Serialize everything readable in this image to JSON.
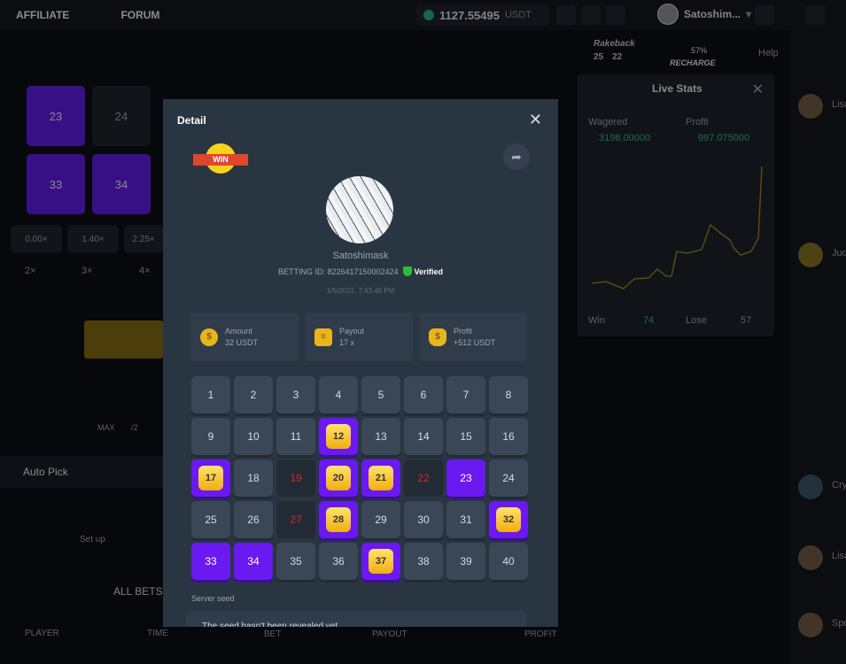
{
  "topbar": {
    "nav": [
      "AFFILIATE",
      "FORUM"
    ],
    "balance": "1127.55495",
    "currency": "USDT",
    "username": "Satoshim..."
  },
  "rakeback": {
    "label": "Rakeback",
    "values": [
      "25",
      "22"
    ]
  },
  "recharge": {
    "percent": "57%",
    "label": "RECHARGE"
  },
  "help": "Help",
  "live_stats": {
    "title": "Live Stats",
    "wagered_label": "Wagered",
    "wagered": "3198.00000",
    "profit_label": "Profit",
    "profit": "997.075000",
    "win_label": "Win",
    "win": "74",
    "lose_label": "Lose",
    "lose": "57"
  },
  "game": {
    "tiles": [
      "23",
      "24",
      "33",
      "34"
    ],
    "multipliers": [
      "0.00×",
      "1.40×",
      "2.25×"
    ],
    "hits": [
      "2×",
      "3×",
      "4×"
    ],
    "amount_buttons": [
      "MAX",
      "/2"
    ],
    "auto_pick": "Auto Pick",
    "setup": "Set up",
    "all_bets": "ALL BETS",
    "columns": [
      "PLAYER",
      "TIME",
      "BET",
      "PAYOUT",
      "PROFIT"
    ]
  },
  "chat": {
    "users": [
      "Lisa",
      "Jud",
      "Cry",
      "Lisa",
      "Spo"
    ]
  },
  "modal": {
    "title": "Detail",
    "win_badge": "WIN",
    "username": "Satoshimask",
    "betting_id": "BETTING ID: 8226417150002424",
    "verified": "Verified",
    "date": "1/5/2021, 7:43:46 PM",
    "cards": [
      {
        "label": "Amount",
        "value": "32 USDT",
        "icon": "coin-hand-icon"
      },
      {
        "label": "Payout",
        "value": "17 x",
        "icon": "coin-stack-icon"
      },
      {
        "label": "Profit",
        "value": "+512 USDT",
        "icon": "money-bag-icon"
      }
    ],
    "grid": {
      "numbers": [
        "1",
        "2",
        "3",
        "4",
        "5",
        "6",
        "7",
        "8",
        "9",
        "10",
        "11",
        "12",
        "13",
        "14",
        "15",
        "16",
        "17",
        "18",
        "19",
        "20",
        "21",
        "22",
        "23",
        "24",
        "25",
        "26",
        "27",
        "28",
        "29",
        "30",
        "31",
        "32",
        "33",
        "34",
        "35",
        "36",
        "37",
        "38",
        "39",
        "40"
      ],
      "hits": [
        12,
        17,
        20,
        21,
        28,
        32,
        37
      ],
      "picked": [
        23,
        33,
        34
      ],
      "misses": [
        19,
        22,
        27
      ]
    },
    "server_seed_label": "Server seed",
    "server_seed": "The seed hasn't been revealed yet"
  },
  "colors": {
    "pick": "#6a19f0",
    "gem": "#f7c531",
    "miss": "#d8262c",
    "verified": "#28c038",
    "usdt": "#27a17c"
  }
}
